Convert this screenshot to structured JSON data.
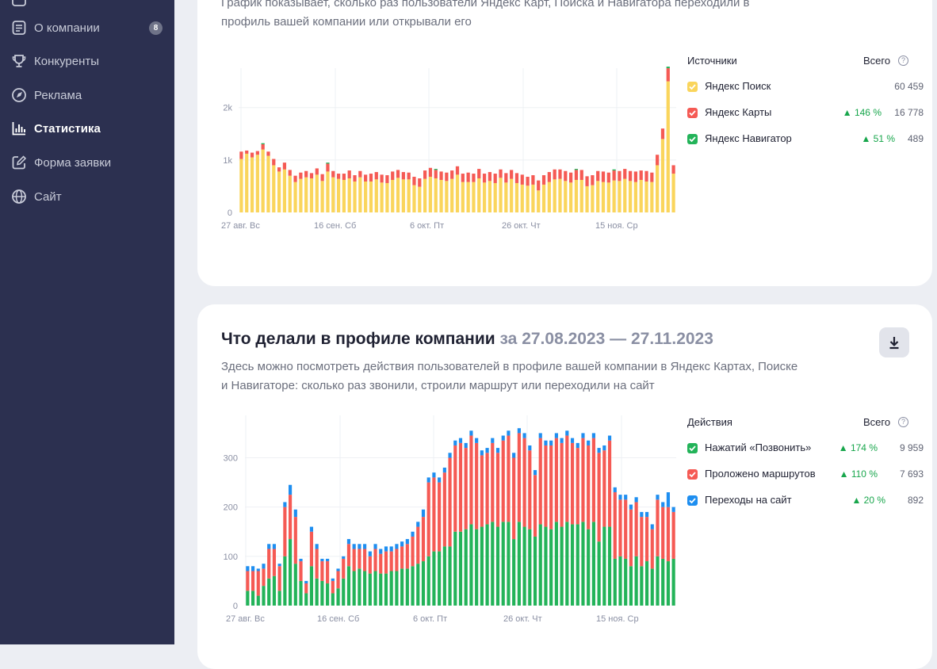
{
  "sidebar": {
    "items": [
      {
        "label": "О компании",
        "icon": "document-icon",
        "badge": "8"
      },
      {
        "label": "Конкуренты",
        "icon": "trophy-icon"
      },
      {
        "label": "Реклама",
        "icon": "compass-icon"
      },
      {
        "label": "Статистика",
        "icon": "bar-chart-icon",
        "active": true
      },
      {
        "label": "Форма заявки",
        "icon": "edit-form-icon"
      },
      {
        "label": "Сайт",
        "icon": "globe-icon"
      }
    ]
  },
  "card1": {
    "description": "График показывает, сколько раз пользователи Яндекс Карт, Поиска и Навигатора переходили в профиль вашей компании или открывали его",
    "legend_header": "Источники",
    "total_header": "Всего",
    "legend": [
      {
        "label": "Яндекс Поиск",
        "color": "#fad55c",
        "pct": "",
        "value": "60 459"
      },
      {
        "label": "Яндекс Карты",
        "color": "#f55a54",
        "pct": "▲ 146 %",
        "value": "16 778"
      },
      {
        "label": "Яндекс Навигатор",
        "color": "#23b359",
        "pct": "▲ 51 %",
        "value": "489"
      }
    ]
  },
  "card2": {
    "title": "Что делали в профиле компании",
    "period": "за 27.08.2023 — 27.11.2023",
    "description": "Здесь можно посмотреть действия пользователей в профиле вашей компании в Яндекс Картах, Поиске и Навигаторе: сколько раз звонили, строили маршрут или переходили на сайт",
    "legend_header": "Действия",
    "total_header": "Всего",
    "legend": [
      {
        "label": "Нажатий «Позвонить»",
        "color": "#23b359",
        "pct": "▲ 174 %",
        "value": "9 959"
      },
      {
        "label": "Проложено маршрутов",
        "color": "#f55a54",
        "pct": "▲ 110 %",
        "value": "7 693"
      },
      {
        "label": "Переходы на сайт",
        "color": "#1e8ef0",
        "pct": "▲ 20 %",
        "value": "892"
      }
    ]
  },
  "chart_data": [
    {
      "type": "bar",
      "stacked": true,
      "x_tick_labels": [
        "27 авг. Вс",
        "16 сен. Сб",
        "6 окт. Пт",
        "26 окт. Чт",
        "15 ноя. Ср"
      ],
      "y_tick_labels": [
        "0",
        "1k",
        "2k"
      ],
      "ylim": [
        0,
        2600
      ],
      "grid": true,
      "series": [
        {
          "name": "Яндекс Поиск",
          "color": "#fad55c",
          "values": [
            1020,
            1120,
            1050,
            1100,
            1200,
            1080,
            900,
            780,
            820,
            700,
            580,
            640,
            670,
            650,
            720,
            600,
            780,
            670,
            640,
            620,
            650,
            590,
            670,
            590,
            590,
            630,
            570,
            560,
            620,
            660,
            630,
            630,
            520,
            490,
            640,
            680,
            650,
            620,
            600,
            640,
            720,
            580,
            580,
            580,
            650,
            570,
            600,
            560,
            660,
            570,
            640,
            560,
            530,
            510,
            530,
            420,
            530,
            580,
            630,
            640,
            600,
            570,
            620,
            620,
            500,
            520,
            600,
            580,
            570,
            610,
            600,
            640,
            600,
            580,
            620,
            590,
            580,
            900,
            1400,
            2500,
            740
          ]
        },
        {
          "name": "Яндекс Карты",
          "color": "#f55a54",
          "values": [
            140,
            60,
            90,
            70,
            100,
            80,
            120,
            80,
            130,
            110,
            120,
            120,
            120,
            100,
            120,
            130,
            150,
            120,
            100,
            120,
            150,
            120,
            120,
            130,
            150,
            140,
            150,
            150,
            160,
            150,
            140,
            130,
            160,
            160,
            160,
            170,
            160,
            160,
            160,
            160,
            160,
            160,
            180,
            160,
            180,
            170,
            170,
            180,
            160,
            180,
            170,
            190,
            190,
            170,
            180,
            190,
            180,
            190,
            190,
            180,
            190,
            190,
            190,
            190,
            190,
            190,
            190,
            200,
            190,
            190,
            190,
            190,
            190,
            200,
            180,
            200,
            180,
            200,
            200,
            250,
            160
          ]
        },
        {
          "name": "Яндекс Навигатор",
          "color": "#23b359",
          "values": [
            0,
            0,
            0,
            0,
            20,
            0,
            0,
            0,
            0,
            0,
            0,
            0,
            0,
            0,
            0,
            0,
            20,
            0,
            0,
            0,
            0,
            0,
            0,
            0,
            0,
            0,
            0,
            0,
            0,
            0,
            0,
            0,
            0,
            0,
            0,
            0,
            20,
            0,
            0,
            0,
            0,
            0,
            0,
            0,
            0,
            0,
            0,
            0,
            0,
            0,
            0,
            0,
            0,
            0,
            0,
            0,
            0,
            0,
            0,
            0,
            0,
            0,
            20,
            0,
            0,
            0,
            0,
            0,
            0,
            20,
            0,
            0,
            0,
            0,
            0,
            0,
            0,
            0,
            0,
            30,
            0
          ]
        }
      ]
    },
    {
      "type": "bar",
      "stacked": true,
      "x_tick_labels": [
        "27 авг. Вс",
        "16 сен. Сб",
        "6 окт. Пт",
        "26 окт. Чт",
        "15 ноя. Ср"
      ],
      "y_tick_labels": [
        "0",
        "100",
        "200",
        "300"
      ],
      "ylim": [
        0,
        370
      ],
      "grid": true,
      "series": [
        {
          "name": "Нажатий «Позвонить»",
          "color": "#23b359",
          "values": [
            30,
            30,
            20,
            40,
            55,
            60,
            30,
            100,
            135,
            85,
            50,
            25,
            80,
            55,
            50,
            45,
            25,
            35,
            55,
            80,
            70,
            75,
            70,
            65,
            70,
            65,
            65,
            70,
            70,
            75,
            75,
            80,
            85,
            90,
            100,
            110,
            110,
            120,
            120,
            150,
            150,
            155,
            165,
            155,
            160,
            165,
            170,
            160,
            170,
            170,
            135,
            170,
            160,
            155,
            140,
            165,
            160,
            155,
            170,
            160,
            170,
            165,
            165,
            170,
            155,
            170,
            130,
            160,
            160,
            95,
            100,
            95,
            80,
            100,
            80,
            90,
            75,
            100,
            95,
            90,
            95
          ]
        },
        {
          "name": "Проложено маршрутов",
          "color": "#f55a54",
          "values": [
            40,
            40,
            50,
            35,
            60,
            55,
            50,
            100,
            90,
            95,
            40,
            20,
            70,
            60,
            40,
            45,
            25,
            35,
            40,
            45,
            45,
            40,
            45,
            35,
            45,
            40,
            45,
            40,
            45,
            45,
            50,
            60,
            75,
            90,
            150,
            150,
            140,
            150,
            180,
            175,
            180,
            165,
            180,
            175,
            145,
            145,
            160,
            150,
            165,
            175,
            165,
            180,
            180,
            160,
            125,
            175,
            165,
            170,
            170,
            170,
            175,
            165,
            155,
            170,
            170,
            170,
            180,
            155,
            175,
            135,
            115,
            120,
            115,
            110,
            100,
            90,
            80,
            115,
            105,
            110,
            95
          ]
        },
        {
          "name": "Переходы на сайт",
          "color": "#1e8ef0",
          "values": [
            10,
            10,
            5,
            10,
            10,
            10,
            5,
            10,
            20,
            15,
            5,
            5,
            10,
            10,
            5,
            5,
            5,
            5,
            5,
            10,
            10,
            10,
            10,
            10,
            10,
            10,
            10,
            10,
            10,
            10,
            10,
            10,
            10,
            15,
            10,
            10,
            10,
            10,
            10,
            10,
            10,
            10,
            10,
            10,
            10,
            10,
            10,
            10,
            10,
            10,
            10,
            10,
            10,
            10,
            10,
            10,
            10,
            10,
            10,
            10,
            10,
            10,
            10,
            10,
            10,
            10,
            10,
            10,
            10,
            10,
            10,
            10,
            10,
            10,
            10,
            10,
            10,
            10,
            10,
            30,
            10
          ]
        }
      ]
    }
  ]
}
